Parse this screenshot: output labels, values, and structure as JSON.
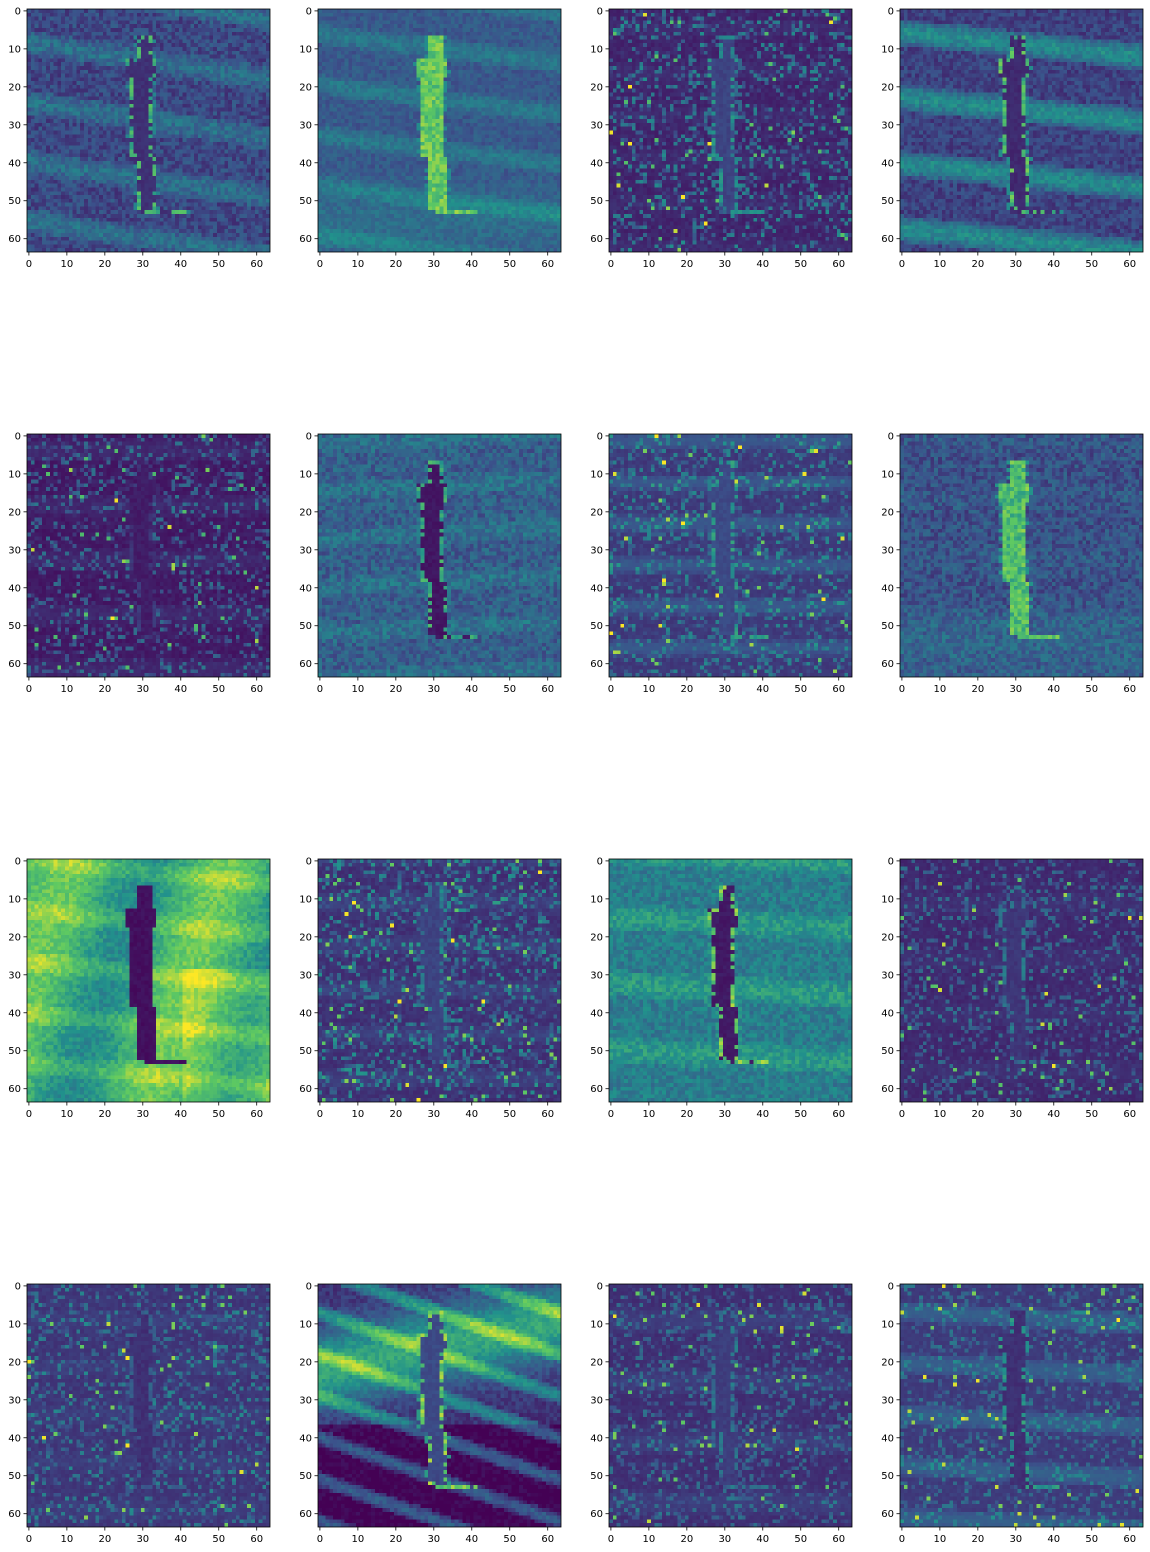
{
  "chart_data": {
    "type": "heatmap",
    "title": "",
    "layout": {
      "rows": 4,
      "cols": 4
    },
    "colormap": "viridis",
    "colormap_stops": [
      "#440154",
      "#3b528b",
      "#21918c",
      "#5ec962",
      "#fde725"
    ],
    "image_size": [
      64,
      64
    ],
    "x_range": [
      -0.5,
      63.5
    ],
    "y_range": [
      63.5,
      -0.5
    ],
    "x_ticks": [
      0,
      10,
      20,
      30,
      40,
      50,
      60
    ],
    "y_ticks": [
      0,
      10,
      20,
      30,
      40,
      50,
      60
    ],
    "panels": [
      {
        "mode": "mid",
        "bg": 0.22,
        "figure": 0.12,
        "edge": 0.75,
        "noise": 0.18,
        "stripes": 0.3,
        "slope": -0.15
      },
      {
        "mode": "glow",
        "bg": 0.28,
        "figure": 0.62,
        "edge": 0.8,
        "noise": 0.12,
        "stripes": 0.25,
        "slope": -0.12
      },
      {
        "mode": "noise",
        "bg": 0.08,
        "figure": 0.18,
        "edge": 0.55,
        "noise": 0.55,
        "stripes": 0.05,
        "slope": 0.0
      },
      {
        "mode": "stripes",
        "bg": 0.2,
        "figure": 0.1,
        "edge": 0.8,
        "noise": 0.15,
        "stripes": 0.55,
        "slope": -0.1
      },
      {
        "mode": "noise",
        "bg": 0.05,
        "figure": 0.06,
        "edge": 0.2,
        "noise": 0.45,
        "stripes": 0.1,
        "slope": 0.0
      },
      {
        "mode": "dark",
        "bg": 0.3,
        "figure": 0.04,
        "edge": 0.7,
        "noise": 0.2,
        "stripes": 0.15,
        "slope": 0.05
      },
      {
        "mode": "noise",
        "bg": 0.15,
        "figure": 0.2,
        "edge": 0.6,
        "noise": 0.45,
        "stripes": 0.2,
        "slope": 0.0
      },
      {
        "mode": "glow",
        "bg": 0.25,
        "figure": 0.55,
        "edge": 0.85,
        "noise": 0.2,
        "stripes": 0.05,
        "slope": 0.0
      },
      {
        "mode": "dark",
        "bg": 0.62,
        "figure": 0.02,
        "edge": 0.05,
        "noise": 0.15,
        "stripes": 0.25,
        "slope": -0.1
      },
      {
        "mode": "noise",
        "bg": 0.12,
        "figure": 0.18,
        "edge": 0.5,
        "noise": 0.55,
        "stripes": 0.1,
        "slope": 0.0
      },
      {
        "mode": "dark",
        "bg": 0.42,
        "figure": 0.05,
        "edge": 0.9,
        "noise": 0.18,
        "stripes": 0.25,
        "slope": -0.05
      },
      {
        "mode": "noise",
        "bg": 0.1,
        "figure": 0.14,
        "edge": 0.45,
        "noise": 0.4,
        "stripes": 0.05,
        "slope": 0.0
      },
      {
        "mode": "noise",
        "bg": 0.14,
        "figure": 0.12,
        "edge": 0.35,
        "noise": 0.45,
        "stripes": 0.05,
        "slope": 0.0
      },
      {
        "mode": "wave",
        "bg": 0.15,
        "figure": 0.2,
        "edge": 0.9,
        "noise": 0.12,
        "stripes": 0.6,
        "slope": -0.35
      },
      {
        "mode": "noise",
        "bg": 0.12,
        "figure": 0.16,
        "edge": 0.45,
        "noise": 0.38,
        "stripes": 0.1,
        "slope": 0.0
      },
      {
        "mode": "noise",
        "bg": 0.16,
        "figure": 0.12,
        "edge": 0.6,
        "noise": 0.35,
        "stripes": 0.25,
        "slope": -0.05
      }
    ]
  }
}
